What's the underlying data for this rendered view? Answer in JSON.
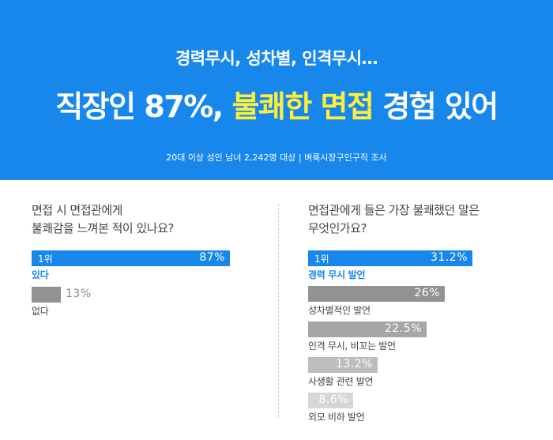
{
  "header": {
    "subtitle": "경력무시, 성차별, 인격무시…",
    "title_part1": "직장인 87%, ",
    "title_highlight": "불쾌한 면접",
    "title_part2": " 경험 있어",
    "source": "20대 이상 성인 남녀 2,242명 대상  |  벼룩시장구인구직 조사"
  },
  "colors": {
    "banner": "#1887ec",
    "highlight": "#ffee3a",
    "top_bar": "#1887ec",
    "bar_shades": [
      "#1887ec",
      "#929292",
      "#a6a6a6",
      "#bdbdbd",
      "#d6d6d6"
    ]
  },
  "chart_data": [
    {
      "type": "bar",
      "question_line1": "면접 시 면접관에게",
      "question_line2": "불쾌감을 느껴본 적이 있나요?",
      "top_rank_label": "1위",
      "categories": [
        "있다",
        "없다"
      ],
      "values": [
        87,
        13
      ],
      "value_labels": [
        "87%",
        "13%"
      ],
      "unit": "%",
      "xlim": [
        0,
        100
      ]
    },
    {
      "type": "bar",
      "question_line1": "면접관에게 들은 가장 불쾌했던 말은",
      "question_line2": "무엇인가요?",
      "top_rank_label": "1위",
      "categories": [
        "경력 무시 발언",
        "성차별적인 발언",
        "인격 무시, 비꼬는 발언",
        "사생활 관련 발언",
        "외모 비하 발언"
      ],
      "values": [
        31.2,
        26,
        22.5,
        13.2,
        8.6
      ],
      "value_labels": [
        "31.2%",
        "26%",
        "22.5%",
        "13.2%",
        "8.6%"
      ],
      "unit": "%",
      "xlim": [
        0,
        31.2
      ]
    }
  ]
}
